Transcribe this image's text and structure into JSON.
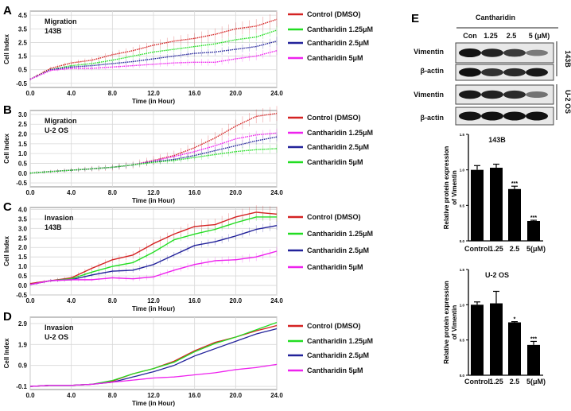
{
  "chart_data": [
    {
      "panel": "A",
      "type": "line",
      "annotation": [
        "Migration",
        "143B"
      ],
      "xlabel": "Time (in Hour)",
      "ylabel": "Cell Index",
      "xlim": [
        0,
        24
      ],
      "ylim": [
        -0.8,
        4.8
      ],
      "xticks": [
        "0.0",
        "4.0",
        "8.0",
        "12.0",
        "16.0",
        "20.0",
        "24.0"
      ],
      "yticks": [
        "-0.5",
        "0.5",
        "1.5",
        "2.5",
        "3.5",
        "4.5"
      ],
      "grid": true,
      "legend_position": "right",
      "error_bars": true,
      "x": [
        0,
        2,
        4,
        6,
        8,
        10,
        12,
        14,
        16,
        18,
        20,
        22,
        24
      ],
      "series": [
        {
          "name": "Control (DMSO)",
          "color": "#d42222",
          "values": [
            -0.2,
            0.6,
            1.0,
            1.2,
            1.6,
            1.9,
            2.3,
            2.6,
            2.8,
            3.1,
            3.5,
            3.7,
            4.2
          ]
        },
        {
          "name": "Cantharidin 1.25μM",
          "color": "#22dd22",
          "values": [
            -0.2,
            0.5,
            0.8,
            0.95,
            1.2,
            1.5,
            1.8,
            2.0,
            2.2,
            2.4,
            2.7,
            2.9,
            3.4
          ]
        },
        {
          "name": "Cantharidin 2.5μM",
          "color": "#22229a",
          "values": [
            -0.2,
            0.5,
            0.7,
            0.8,
            0.95,
            1.1,
            1.3,
            1.5,
            1.7,
            1.8,
            2.0,
            2.2,
            2.6
          ]
        },
        {
          "name": "Cantharidin 5μM",
          "color": "#ee22ee",
          "values": [
            -0.2,
            0.45,
            0.6,
            0.6,
            0.7,
            0.8,
            0.9,
            1.0,
            1.05,
            1.05,
            1.3,
            1.5,
            1.9
          ]
        }
      ]
    },
    {
      "panel": "B",
      "type": "line",
      "annotation": [
        "Migration",
        "U-2 OS"
      ],
      "xlabel": "Time (in Hour)",
      "ylabel": "Cell Index",
      "xlim": [
        0,
        24
      ],
      "ylim": [
        -0.7,
        3.2
      ],
      "xticks": [
        "0.0",
        "4.0",
        "8.0",
        "12.0",
        "16.0",
        "20.0",
        "24.0"
      ],
      "yticks": [
        "-0.5",
        "0.0",
        "0.5",
        "1.0",
        "1.5",
        "2.0",
        "2.5",
        "3.0"
      ],
      "grid": true,
      "legend_position": "right",
      "error_bars": true,
      "x": [
        0,
        2,
        4,
        6,
        8,
        10,
        12,
        14,
        16,
        18,
        20,
        22,
        24
      ],
      "series": [
        {
          "name": "Control (DMSO)",
          "color": "#d42222",
          "values": [
            0,
            0.08,
            0.15,
            0.22,
            0.3,
            0.42,
            0.65,
            0.9,
            1.3,
            1.8,
            2.4,
            2.9,
            3.05
          ]
        },
        {
          "name": "Cantharidin 1.25μM",
          "color": "#ee22ee",
          "values": [
            0,
            0.08,
            0.15,
            0.22,
            0.3,
            0.42,
            0.62,
            0.85,
            1.1,
            1.4,
            1.75,
            1.95,
            2.05
          ]
        },
        {
          "name": "Cantharidin 2.5μM",
          "color": "#22229a",
          "values": [
            0,
            0.08,
            0.15,
            0.22,
            0.3,
            0.42,
            0.58,
            0.7,
            0.9,
            1.15,
            1.4,
            1.65,
            1.85
          ]
        },
        {
          "name": "Cantharidin 5μM",
          "color": "#22dd22",
          "values": [
            0,
            0.08,
            0.15,
            0.22,
            0.3,
            0.42,
            0.55,
            0.65,
            0.8,
            0.95,
            1.1,
            1.2,
            1.25
          ]
        }
      ]
    },
    {
      "panel": "C",
      "type": "line",
      "annotation": [
        "Invasion",
        "143B"
      ],
      "xlabel": "Time (in Hour)",
      "ylabel": "Cell Index",
      "xlim": [
        0,
        24
      ],
      "ylim": [
        -0.5,
        4.1
      ],
      "xticks": [
        "0.0",
        "4.0",
        "8.0",
        "12.0",
        "16.0",
        "20.0",
        "24.0"
      ],
      "yticks": [
        "-0.5",
        "0.0",
        "0.5",
        "1.0",
        "1.5",
        "2.0",
        "2.5",
        "3.0",
        "3.5",
        "4.0"
      ],
      "grid": true,
      "legend_position": "right",
      "error_bars": true,
      "x": [
        0,
        2,
        4,
        6,
        8,
        10,
        12,
        14,
        16,
        18,
        20,
        22,
        24
      ],
      "series": [
        {
          "name": "Control (DMSO)",
          "color": "#d42222",
          "values": [
            0.1,
            0.25,
            0.4,
            0.9,
            1.35,
            1.6,
            2.2,
            2.7,
            3.1,
            3.2,
            3.6,
            3.85,
            3.75
          ]
        },
        {
          "name": "Cantharidin 1.25μM",
          "color": "#22dd22",
          "values": [
            0.05,
            0.25,
            0.35,
            0.7,
            1.0,
            1.2,
            1.75,
            2.4,
            2.7,
            2.95,
            3.3,
            3.6,
            3.6
          ]
        },
        {
          "name": "Cantharidin 2.5μM",
          "color": "#22229a",
          "values": [
            0.05,
            0.25,
            0.3,
            0.55,
            0.75,
            0.8,
            1.1,
            1.6,
            2.1,
            2.3,
            2.6,
            2.95,
            3.15
          ]
        },
        {
          "name": "Cantharidin 5μM",
          "color": "#ee22ee",
          "values": [
            0.05,
            0.25,
            0.3,
            0.3,
            0.4,
            0.35,
            0.45,
            0.8,
            1.1,
            1.3,
            1.35,
            1.5,
            1.8
          ]
        }
      ]
    },
    {
      "panel": "D",
      "type": "line",
      "annotation": [
        "Invasion",
        "U-2 OS"
      ],
      "xlabel": "Time (in Hour)",
      "ylabel": "Cell Index",
      "xlim": [
        0,
        24
      ],
      "ylim": [
        -0.25,
        3.2
      ],
      "xticks": [
        "0.0",
        "4.0",
        "8.0",
        "12.0",
        "16.0",
        "20.0",
        "24.0"
      ],
      "yticks": [
        "-0.1",
        "0.9",
        "1.9",
        "2.9"
      ],
      "grid": true,
      "legend_position": "right",
      "error_bars": false,
      "x": [
        0,
        2,
        4,
        6,
        8,
        10,
        12,
        14,
        16,
        18,
        20,
        22,
        24
      ],
      "series": [
        {
          "name": "Control (DMSO)",
          "color": "#d42222",
          "values": [
            -0.1,
            -0.05,
            -0.05,
            0,
            0.15,
            0.5,
            0.75,
            1.1,
            1.6,
            2.0,
            2.25,
            2.55,
            2.8
          ]
        },
        {
          "name": "Cantharidin 1.25μM",
          "color": "#22dd22",
          "values": [
            -0.1,
            -0.05,
            -0.05,
            0,
            0.18,
            0.5,
            0.75,
            1.05,
            1.55,
            1.95,
            2.25,
            2.6,
            2.95
          ]
        },
        {
          "name": "Cantharidin 2.5μM",
          "color": "#22229a",
          "values": [
            -0.1,
            -0.05,
            -0.05,
            0,
            0.1,
            0.35,
            0.6,
            0.9,
            1.35,
            1.7,
            2.05,
            2.4,
            2.65
          ]
        },
        {
          "name": "Cantharidin 5μM",
          "color": "#ee22ee",
          "values": [
            -0.1,
            -0.05,
            -0.05,
            0,
            0.1,
            0.2,
            0.3,
            0.35,
            0.45,
            0.55,
            0.7,
            0.8,
            0.95
          ]
        }
      ]
    },
    {
      "panel": "E-143B",
      "type": "bar",
      "title": "143B",
      "ylabel": "Relative protein expression of Vimentin",
      "categories": [
        "Control",
        "1.25",
        "2.5",
        "5(μM)"
      ],
      "values": [
        1.0,
        1.03,
        0.73,
        0.28
      ],
      "errors": [
        0.06,
        0.05,
        0.04,
        0.01
      ],
      "significance": [
        "",
        "",
        "***",
        "***"
      ],
      "ylim": [
        0,
        1.5
      ],
      "yticks": [
        "0.0",
        "0.5",
        "1.0",
        "1.5"
      ]
    },
    {
      "panel": "E-U2OS",
      "type": "bar",
      "title": "U-2 OS",
      "ylabel": "Relative protein expression of Vimentin",
      "categories": [
        "Control",
        "1.25",
        "2.5",
        "5(μM)"
      ],
      "values": [
        1.0,
        1.02,
        0.75,
        0.43
      ],
      "errors": [
        0.04,
        0.17,
        0.01,
        0.05
      ],
      "significance": [
        "",
        "",
        "*",
        "***"
      ],
      "ylim": [
        0,
        1.5
      ],
      "yticks": [
        "0.0",
        "0.5",
        "1.0",
        "1.5"
      ]
    }
  ],
  "panel_labels": [
    "A",
    "B",
    "C",
    "D",
    "E"
  ],
  "western_blot": {
    "treatment": "Cantharidin",
    "lanes": [
      "Con",
      "1.25",
      "2.5",
      "5 (μM)"
    ],
    "rows": [
      "Vimentin",
      "β-actin",
      "Vimentin",
      "β-actin"
    ],
    "cell_lines": [
      "143B",
      "U-2 OS"
    ],
    "band_intensity": [
      [
        1.0,
        0.9,
        0.75,
        0.35
      ],
      [
        1.0,
        0.8,
        0.85,
        0.95
      ],
      [
        0.95,
        0.9,
        0.85,
        0.4
      ],
      [
        1.0,
        1.0,
        1.0,
        1.0
      ]
    ]
  }
}
